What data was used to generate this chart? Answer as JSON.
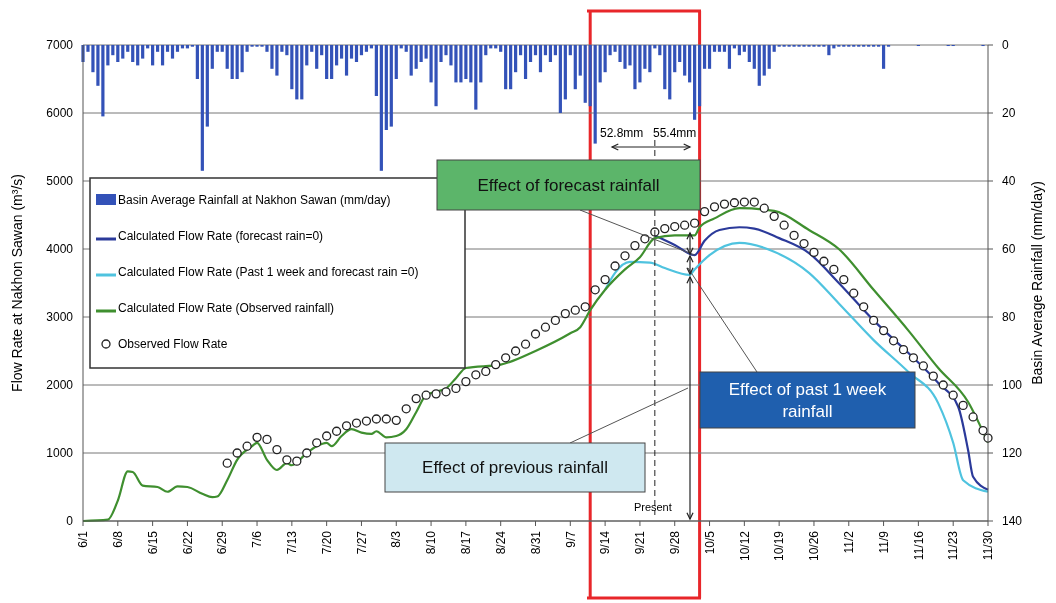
{
  "chart_data": {
    "type": "line",
    "ylabel": "Flow Rate at Nakhon Sawan (m³/s)",
    "y2label": "Basin Average Rainfall (mm/day)",
    "ylim": [
      0,
      7000
    ],
    "yticks": [
      0,
      1000,
      2000,
      3000,
      4000,
      5000,
      6000,
      7000
    ],
    "y2lim": [
      140,
      0
    ],
    "y2ticks": [
      0,
      20,
      40,
      60,
      80,
      100,
      120,
      140
    ],
    "xlim": [
      "--06-01",
      "--11-30"
    ],
    "xticks": [
      {
        "value": "--06-01",
        "label": "6/1"
      },
      {
        "value": "--06-08",
        "label": "6/8"
      },
      {
        "value": "--06-15",
        "label": "6/15"
      },
      {
        "value": "--06-22",
        "label": "6/22"
      },
      {
        "value": "--06-29",
        "label": "6/29"
      },
      {
        "value": "--07-06",
        "label": "7/6"
      },
      {
        "value": "--07-13",
        "label": "7/13"
      },
      {
        "value": "--07-20",
        "label": "7/20"
      },
      {
        "value": "--07-27",
        "label": "7/27"
      },
      {
        "value": "--08-03",
        "label": "8/3"
      },
      {
        "value": "--08-10",
        "label": "8/10"
      },
      {
        "value": "--08-17",
        "label": "8/17"
      },
      {
        "value": "--08-24",
        "label": "8/24"
      },
      {
        "value": "--08-31",
        "label": "8/31"
      },
      {
        "value": "--09-07",
        "label": "9/7"
      },
      {
        "value": "--09-14",
        "label": "9/14"
      },
      {
        "value": "--09-21",
        "label": "9/21"
      },
      {
        "value": "--09-28",
        "label": "9/28"
      },
      {
        "value": "--10-05",
        "label": "10/5"
      },
      {
        "value": "--10-12",
        "label": "10/12"
      },
      {
        "value": "--10-19",
        "label": "10/19"
      },
      {
        "value": "--10-26",
        "label": "10/26"
      },
      {
        "value": "--11-02",
        "label": "11/2"
      },
      {
        "value": "--11-09",
        "label": "11/9"
      },
      {
        "value": "--11-16",
        "label": "11/16"
      },
      {
        "value": "--11-23",
        "label": "11/23"
      },
      {
        "value": "--11-30",
        "label": "11/30"
      }
    ],
    "grid": "y",
    "legend": "left",
    "x": [
      "--06-01",
      "--06-02",
      "--06-03",
      "--06-04",
      "--06-05",
      "--06-06",
      "--06-07",
      "--06-08",
      "--06-09",
      "--06-10",
      "--06-11",
      "--06-12",
      "--06-13",
      "--06-14",
      "--06-15",
      "--06-16",
      "--06-17",
      "--06-18",
      "--06-19",
      "--06-20",
      "--06-21",
      "--06-22",
      "--06-23",
      "--06-24",
      "--06-25",
      "--06-26",
      "--06-27",
      "--06-28",
      "--06-29",
      "--06-30",
      "--07-01",
      "--07-02",
      "--07-03",
      "--07-04",
      "--07-05",
      "--07-06",
      "--07-07",
      "--07-08",
      "--07-09",
      "--07-10",
      "--07-11",
      "--07-12",
      "--07-13",
      "--07-14",
      "--07-15",
      "--07-16",
      "--07-17",
      "--07-18",
      "--07-19",
      "--07-20",
      "--07-21",
      "--07-22",
      "--07-23",
      "--07-24",
      "--07-25",
      "--07-26",
      "--07-27",
      "--07-28",
      "--07-29",
      "--07-30",
      "--07-31",
      "--08-01",
      "--08-02",
      "--08-03",
      "--08-04",
      "--08-05",
      "--08-06",
      "--08-07",
      "--08-08",
      "--08-09",
      "--08-10",
      "--08-11",
      "--08-12",
      "--08-13",
      "--08-14",
      "--08-15",
      "--08-16",
      "--08-17",
      "--08-18",
      "--08-19",
      "--08-20",
      "--08-21",
      "--08-22",
      "--08-23",
      "--08-24",
      "--08-25",
      "--08-26",
      "--08-27",
      "--08-28",
      "--08-29",
      "--08-30",
      "--08-31",
      "--09-01",
      "--09-02",
      "--09-03",
      "--09-04",
      "--09-05",
      "--09-06",
      "--09-07",
      "--09-08",
      "--09-09",
      "--09-10",
      "--09-11",
      "--09-12",
      "--09-13",
      "--09-14",
      "--09-15",
      "--09-16",
      "--09-17",
      "--09-18",
      "--09-19",
      "--09-20",
      "--09-21",
      "--09-22",
      "--09-23",
      "--09-24",
      "--09-25",
      "--09-26",
      "--09-27",
      "--09-28",
      "--09-29",
      "--09-30",
      "--10-01",
      "--10-02",
      "--10-03",
      "--10-04",
      "--10-05",
      "--10-06",
      "--10-07",
      "--10-08",
      "--10-09",
      "--10-10",
      "--10-11",
      "--10-12",
      "--10-13",
      "--10-14",
      "--10-15",
      "--10-16",
      "--10-17",
      "--10-18",
      "--10-19",
      "--10-20",
      "--10-21",
      "--10-22",
      "--10-23",
      "--10-24",
      "--10-25",
      "--10-26",
      "--10-27",
      "--10-28",
      "--10-29",
      "--10-30",
      "--10-31",
      "--11-01",
      "--11-02",
      "--11-03",
      "--11-04",
      "--11-05",
      "--11-06",
      "--11-07",
      "--11-08",
      "--11-09",
      "--11-10",
      "--11-11",
      "--11-12",
      "--11-13",
      "--11-14",
      "--11-15",
      "--11-16",
      "--11-17",
      "--11-18",
      "--11-19",
      "--11-20",
      "--11-21",
      "--11-22",
      "--11-23",
      "--11-24",
      "--11-25",
      "--11-26",
      "--11-27",
      "--11-28",
      "--11-29",
      "--11-30"
    ],
    "series": [
      {
        "name": "Basin Average Rainfall at Nakhon Sawan (mm/day)",
        "type": "bar",
        "axis": "y2",
        "color": "#3352b8",
        "values": [
          5,
          2,
          8,
          12,
          21,
          6,
          3,
          5,
          4,
          2,
          5,
          6,
          4,
          1,
          6,
          2,
          6,
          2,
          4,
          2,
          1,
          1,
          0.5,
          10,
          37,
          24,
          7,
          2,
          2,
          7,
          10,
          10,
          8,
          2,
          0.5,
          0.5,
          0.5,
          2,
          7,
          9,
          2,
          3,
          13,
          16,
          16,
          6,
          2,
          7,
          3,
          10,
          10,
          6,
          4,
          9,
          4,
          5,
          3,
          2,
          1,
          15,
          37,
          25,
          24,
          10,
          1,
          2,
          9,
          7,
          5,
          4,
          11,
          18,
          5,
          3,
          6,
          11,
          11,
          10,
          11,
          19,
          11,
          3,
          1,
          1,
          2,
          13,
          13,
          8,
          3,
          10,
          5,
          3,
          8,
          3,
          5,
          3,
          20,
          16,
          3,
          13,
          9,
          17,
          18,
          29,
          11,
          8,
          3,
          2,
          5,
          7,
          6,
          13,
          11,
          7,
          8,
          1,
          3,
          13,
          16,
          8,
          5,
          9,
          11,
          22,
          18,
          7,
          7,
          2,
          2,
          2,
          7,
          1,
          3,
          2,
          5,
          7,
          12,
          9,
          7,
          2,
          0.5,
          0.5,
          0.5,
          0.5,
          0.5,
          0.5,
          0.5,
          0.5,
          0.5,
          0.5,
          3,
          1,
          0.5,
          0.5,
          0.5,
          0.5,
          0.5,
          0.5,
          0.5,
          0.5,
          0.5,
          7,
          0.5,
          0,
          0,
          0,
          0,
          0,
          0.3,
          0,
          0,
          0,
          0,
          0,
          0.3,
          0.3,
          0,
          0,
          0,
          0,
          0,
          0.3,
          0
        ]
      },
      {
        "name": "Calculated Flow Rate (forecast rain=0)",
        "color": "#2b3a9a",
        "x": [
          "--09-24",
          "--09-28",
          "--10-02",
          "--10-04",
          "--10-07",
          "--10-11",
          "--10-14",
          "--10-19",
          "--10-25",
          "--10-31",
          "--11-07",
          "--11-14",
          "--11-20",
          "--11-24",
          "--11-26",
          "--11-27",
          "--11-30"
        ],
        "values": [
          4200,
          4060,
          3910,
          4120,
          4280,
          4320,
          4300,
          4160,
          3940,
          3500,
          2950,
          2470,
          2030,
          1680,
          1040,
          650,
          460
        ]
      },
      {
        "name": "Calculated Flow Rate (Past 1 week and forecast rain =0)",
        "color": "#4fc3df",
        "x": [
          "--09-14",
          "--09-16",
          "--09-19",
          "--09-23",
          "--09-26",
          "--10-01",
          "--10-02",
          "--10-05",
          "--10-11",
          "--10-18",
          "--10-25",
          "--10-31",
          "--11-07",
          "--11-14",
          "--11-20",
          "--11-23",
          "--11-25",
          "--11-30"
        ],
        "values": [
          3400,
          3650,
          3810,
          3800,
          3720,
          3620,
          3700,
          3910,
          4090,
          3960,
          3650,
          3200,
          2660,
          2190,
          1730,
          1150,
          600,
          430
        ]
      },
      {
        "name": "Calculated Flow Rate (Observed rainfall)",
        "color": "#3f8f2f",
        "x": [
          "--06-01",
          "--06-06",
          "--06-08",
          "--06-10",
          "--06-11",
          "--06-13",
          "--06-16",
          "--06-18",
          "--06-20",
          "--06-22",
          "--06-25",
          "--06-27",
          "--06-28",
          "--06-30",
          "--07-02",
          "--07-05",
          "--07-06",
          "--07-08",
          "--07-10",
          "--07-12",
          "--07-13",
          "--07-16",
          "--07-18",
          "--07-20",
          "--07-21",
          "--07-23",
          "--07-25",
          "--07-27",
          "--07-29",
          "--07-30",
          "--08-01",
          "--08-03",
          "--08-05",
          "--08-07",
          "--08-09",
          "--08-11",
          "--08-13",
          "--08-15",
          "--08-17",
          "--08-24",
          "--08-31",
          "--09-07",
          "--09-09",
          "--09-11",
          "--09-14",
          "--09-18",
          "--09-21",
          "--09-24",
          "--09-28",
          "--10-02",
          "--10-03",
          "--10-06",
          "--10-11",
          "--10-18",
          "--10-25",
          "--10-31",
          "--11-07",
          "--11-14",
          "--11-20",
          "--11-26",
          "--11-30"
        ],
        "values": [
          0,
          20,
          300,
          730,
          720,
          520,
          500,
          430,
          510,
          500,
          400,
          350,
          360,
          600,
          900,
          1100,
          1150,
          900,
          750,
          850,
          820,
          1000,
          1100,
          1150,
          1100,
          1250,
          1350,
          1300,
          1280,
          1320,
          1230,
          1250,
          1350,
          1600,
          1850,
          1900,
          1950,
          2100,
          2250,
          2300,
          2500,
          2760,
          2850,
          3100,
          3400,
          3700,
          3880,
          4160,
          4200,
          4200,
          4320,
          4450,
          4600,
          4560,
          4280,
          4000,
          3400,
          2800,
          2250,
          1750,
          1150
        ]
      },
      {
        "name": "Observed Flow Rate",
        "type": "scatter",
        "marker": "circle",
        "color": "#222222",
        "x": [
          "--06-30",
          "--07-02",
          "--07-04",
          "--07-06",
          "--07-08",
          "--07-10",
          "--07-12",
          "--07-14",
          "--07-16",
          "--07-18",
          "--07-20",
          "--07-22",
          "--07-24",
          "--07-26",
          "--07-28",
          "--07-30",
          "--08-01",
          "--08-03",
          "--08-05",
          "--08-07",
          "--08-09",
          "--08-11",
          "--08-13",
          "--08-15",
          "--08-17",
          "--08-19",
          "--08-21",
          "--08-23",
          "--08-25",
          "--08-27",
          "--08-29",
          "--08-31",
          "--09-02",
          "--09-04",
          "--09-06",
          "--09-08",
          "--09-10",
          "--09-12",
          "--09-14",
          "--09-16",
          "--09-18",
          "--09-20",
          "--09-22",
          "--09-24",
          "--09-26",
          "--09-28",
          "--09-30",
          "--10-02",
          "--10-04",
          "--10-06",
          "--10-08",
          "--10-10",
          "--10-12",
          "--10-14",
          "--10-16",
          "--10-18",
          "--10-20",
          "--10-22",
          "--10-24",
          "--10-26",
          "--10-28",
          "--10-30",
          "--11-01",
          "--11-03",
          "--11-05",
          "--11-07",
          "--11-09",
          "--11-11",
          "--11-13",
          "--11-15",
          "--11-17",
          "--11-19",
          "--11-21",
          "--11-23",
          "--11-25",
          "--11-27",
          "--11-29",
          "--11-30"
        ],
        "values": [
          850,
          1000,
          1100,
          1230,
          1200,
          1050,
          900,
          880,
          1000,
          1150,
          1250,
          1320,
          1400,
          1440,
          1470,
          1500,
          1500,
          1480,
          1650,
          1800,
          1850,
          1870,
          1900,
          1950,
          2050,
          2150,
          2200,
          2300,
          2400,
          2500,
          2600,
          2750,
          2850,
          2950,
          3050,
          3100,
          3150,
          3400,
          3550,
          3750,
          3900,
          4050,
          4150,
          4250,
          4300,
          4330,
          4350,
          4380,
          4550,
          4620,
          4660,
          4680,
          4690,
          4690,
          4600,
          4480,
          4350,
          4200,
          4080,
          3950,
          3820,
          3700,
          3550,
          3350,
          3150,
          2950,
          2800,
          2650,
          2520,
          2400,
          2280,
          2130,
          2000,
          1850,
          1700,
          1530,
          1330,
          1220
        ]
      }
    ],
    "ref_lines": [
      {
        "axis": "x",
        "value": "--09-24",
        "label": "Present",
        "line_style": "dashed"
      },
      {
        "axis": "x",
        "value": "--09-11",
        "color": "#e8262a"
      },
      {
        "axis": "x",
        "value": "--10-03",
        "color": "#e8262a"
      }
    ],
    "annotations": [
      {
        "text": "Effect of forecast rainfall",
        "x": "--10-02",
        "y": 3910
      },
      "Effect of past 1 week rainfall",
      "Effect of previous rainfall",
      "52.8mm",
      "55.4mm"
    ]
  }
}
